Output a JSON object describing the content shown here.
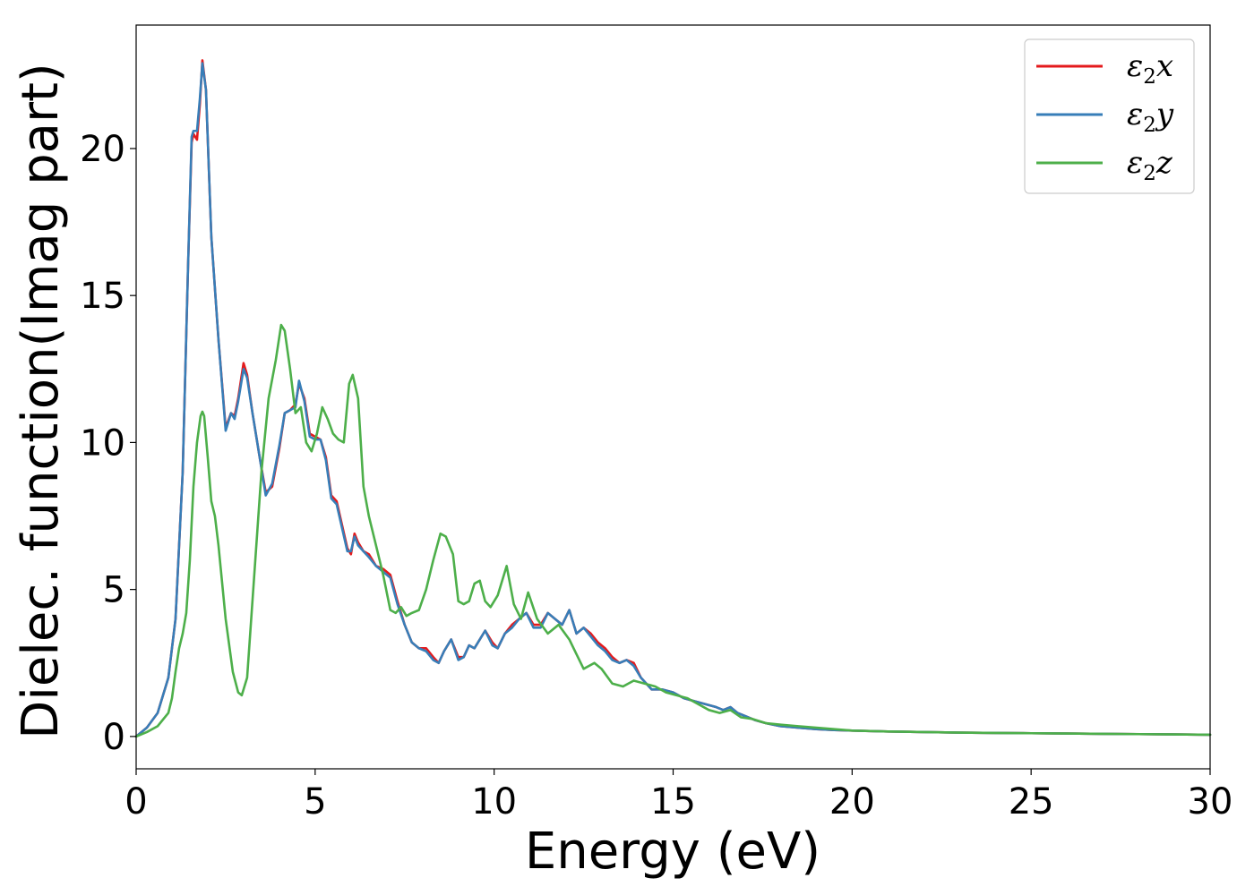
{
  "chart_data": {
    "type": "line",
    "title": "",
    "xlabel": "Energy (eV)",
    "ylabel": "Dielec. function(Imag part)",
    "xlim": [
      0,
      30
    ],
    "ylim": [
      -1.1,
      24.2
    ],
    "xticks": [
      0,
      5,
      10,
      15,
      20,
      25,
      30
    ],
    "yticks": [
      0,
      5,
      10,
      15,
      20
    ],
    "grid": false,
    "legend_position": "top-right",
    "series": [
      {
        "name": "ε₂x",
        "legend_base": "ε",
        "legend_sub": "2",
        "legend_suffix": "x",
        "color": "#e41a1c",
        "x": [
          0,
          0.3,
          0.6,
          0.9,
          1.1,
          1.3,
          1.45,
          1.55,
          1.6,
          1.7,
          1.78,
          1.85,
          1.95,
          2.1,
          2.3,
          2.5,
          2.65,
          2.75,
          2.85,
          3.0,
          3.1,
          3.25,
          3.45,
          3.62,
          3.8,
          4.0,
          4.15,
          4.3,
          4.45,
          4.55,
          4.7,
          4.85,
          5.0,
          5.15,
          5.3,
          5.45,
          5.6,
          5.75,
          5.9,
          6.0,
          6.1,
          6.2,
          6.35,
          6.5,
          6.7,
          6.9,
          7.1,
          7.3,
          7.5,
          7.7,
          7.9,
          8.1,
          8.3,
          8.45,
          8.6,
          8.8,
          9.0,
          9.15,
          9.3,
          9.45,
          9.6,
          9.75,
          9.95,
          10.1,
          10.3,
          10.5,
          10.7,
          10.9,
          11.1,
          11.3,
          11.5,
          11.7,
          11.9,
          12.1,
          12.3,
          12.5,
          12.7,
          12.9,
          13.1,
          13.3,
          13.5,
          13.7,
          13.9,
          14.1,
          14.4,
          14.7,
          15.0,
          15.3,
          15.6,
          15.9,
          16.2,
          16.4,
          16.6,
          16.8,
          17.0,
          17.3,
          17.6,
          18.0,
          18.5,
          19.0,
          19.5,
          20.0,
          21.0,
          22.0,
          23.0,
          24.0,
          25.0,
          26.0,
          27.0,
          28.0,
          29.0,
          30.0
        ],
        "values": [
          0,
          0.3,
          0.8,
          2.0,
          4.0,
          9.0,
          16.0,
          20.2,
          20.5,
          20.3,
          21.5,
          23.0,
          22.0,
          17.0,
          13.5,
          10.5,
          11.0,
          10.9,
          11.5,
          12.7,
          12.3,
          11.0,
          9.5,
          8.3,
          8.5,
          9.8,
          11.0,
          11.1,
          11.3,
          12.0,
          11.5,
          10.3,
          10.2,
          10.1,
          9.5,
          8.2,
          8.0,
          7.2,
          6.4,
          6.2,
          6.9,
          6.6,
          6.3,
          6.2,
          5.8,
          5.7,
          5.5,
          4.6,
          3.8,
          3.2,
          3.0,
          3.0,
          2.7,
          2.5,
          2.9,
          3.3,
          2.7,
          2.7,
          3.1,
          3.0,
          3.3,
          3.6,
          3.2,
          3.0,
          3.5,
          3.8,
          4.0,
          4.2,
          3.8,
          3.8,
          4.2,
          4.0,
          3.8,
          4.3,
          3.5,
          3.7,
          3.5,
          3.2,
          3.0,
          2.7,
          2.5,
          2.6,
          2.5,
          2.0,
          1.6,
          1.6,
          1.5,
          1.3,
          1.2,
          1.1,
          1.0,
          0.9,
          1.0,
          0.8,
          0.7,
          0.55,
          0.45,
          0.35,
          0.3,
          0.25,
          0.22,
          0.2,
          0.17,
          0.15,
          0.13,
          0.12,
          0.11,
          0.1,
          0.09,
          0.08,
          0.07,
          0.06
        ]
      },
      {
        "name": "ε₂y",
        "legend_base": "ε",
        "legend_sub": "2",
        "legend_suffix": "y",
        "color": "#377eb8",
        "x": [
          0,
          0.3,
          0.6,
          0.9,
          1.1,
          1.3,
          1.45,
          1.55,
          1.6,
          1.7,
          1.78,
          1.85,
          1.95,
          2.1,
          2.3,
          2.5,
          2.65,
          2.75,
          2.85,
          3.0,
          3.1,
          3.25,
          3.45,
          3.62,
          3.8,
          4.0,
          4.15,
          4.3,
          4.45,
          4.55,
          4.7,
          4.85,
          5.0,
          5.15,
          5.3,
          5.45,
          5.6,
          5.75,
          5.9,
          6.0,
          6.1,
          6.2,
          6.35,
          6.5,
          6.7,
          6.9,
          7.1,
          7.3,
          7.5,
          7.7,
          7.9,
          8.1,
          8.3,
          8.45,
          8.6,
          8.8,
          9.0,
          9.15,
          9.3,
          9.45,
          9.6,
          9.75,
          9.95,
          10.1,
          10.3,
          10.5,
          10.7,
          10.9,
          11.1,
          11.3,
          11.5,
          11.7,
          11.9,
          12.1,
          12.3,
          12.5,
          12.7,
          12.9,
          13.1,
          13.3,
          13.5,
          13.7,
          13.9,
          14.1,
          14.4,
          14.7,
          15.0,
          15.3,
          15.6,
          15.9,
          16.2,
          16.4,
          16.6,
          16.8,
          17.0,
          17.3,
          17.6,
          18.0,
          18.5,
          19.0,
          19.5,
          20.0,
          21.0,
          22.0,
          23.0,
          24.0,
          25.0,
          26.0,
          27.0,
          28.0,
          29.0,
          30.0
        ],
        "values": [
          0,
          0.3,
          0.8,
          2.0,
          4.0,
          9.0,
          16.0,
          20.4,
          20.6,
          20.6,
          21.7,
          22.9,
          22.0,
          17.0,
          13.5,
          10.4,
          11.0,
          10.8,
          11.4,
          12.5,
          12.2,
          11.0,
          9.5,
          8.2,
          8.6,
          9.9,
          11.0,
          11.1,
          11.2,
          12.1,
          11.4,
          10.2,
          10.1,
          10.1,
          9.4,
          8.1,
          7.9,
          7.1,
          6.3,
          6.3,
          6.8,
          6.5,
          6.3,
          6.1,
          5.8,
          5.6,
          5.4,
          4.5,
          3.8,
          3.2,
          3.0,
          2.9,
          2.6,
          2.5,
          2.9,
          3.3,
          2.6,
          2.7,
          3.1,
          3.0,
          3.3,
          3.6,
          3.1,
          3.0,
          3.5,
          3.7,
          4.0,
          4.2,
          3.7,
          3.7,
          4.2,
          4.0,
          3.8,
          4.3,
          3.5,
          3.7,
          3.4,
          3.1,
          2.9,
          2.6,
          2.5,
          2.6,
          2.4,
          2.0,
          1.6,
          1.6,
          1.5,
          1.3,
          1.2,
          1.1,
          1.0,
          0.9,
          1.0,
          0.8,
          0.7,
          0.55,
          0.45,
          0.35,
          0.3,
          0.25,
          0.22,
          0.2,
          0.17,
          0.15,
          0.13,
          0.12,
          0.11,
          0.1,
          0.09,
          0.08,
          0.07,
          0.06
        ]
      },
      {
        "name": "ε₂z",
        "legend_base": "ε",
        "legend_sub": "2",
        "legend_suffix": "z",
        "color": "#4daf4a",
        "x": [
          0,
          0.3,
          0.6,
          0.9,
          1.0,
          1.1,
          1.2,
          1.3,
          1.4,
          1.5,
          1.6,
          1.7,
          1.8,
          1.85,
          1.9,
          2.0,
          2.1,
          2.2,
          2.3,
          2.5,
          2.7,
          2.85,
          2.95,
          3.1,
          3.3,
          3.5,
          3.7,
          3.9,
          4.05,
          4.15,
          4.3,
          4.45,
          4.6,
          4.75,
          4.9,
          5.05,
          5.2,
          5.35,
          5.5,
          5.65,
          5.8,
          5.95,
          6.05,
          6.2,
          6.35,
          6.5,
          6.7,
          6.9,
          7.1,
          7.25,
          7.4,
          7.55,
          7.7,
          7.9,
          8.1,
          8.3,
          8.5,
          8.65,
          8.85,
          9.0,
          9.15,
          9.3,
          9.45,
          9.6,
          9.75,
          9.9,
          10.1,
          10.35,
          10.55,
          10.75,
          10.95,
          11.2,
          11.5,
          11.8,
          12.1,
          12.3,
          12.5,
          12.8,
          13.0,
          13.3,
          13.6,
          13.9,
          14.2,
          14.5,
          14.8,
          15.1,
          15.4,
          15.7,
          16.0,
          16.3,
          16.6,
          16.9,
          17.2,
          17.6,
          18.0,
          18.5,
          19.0,
          19.5,
          20.0,
          21.0,
          22.0,
          23.0,
          24.0,
          25.0,
          26.0,
          27.0,
          28.0,
          29.0,
          30.0
        ],
        "values": [
          0,
          0.15,
          0.35,
          0.8,
          1.3,
          2.2,
          3.0,
          3.5,
          4.2,
          6.0,
          8.5,
          10.0,
          10.9,
          11.05,
          10.9,
          9.5,
          8.0,
          7.5,
          6.5,
          4.0,
          2.2,
          1.5,
          1.4,
          2.0,
          5.5,
          9.0,
          11.5,
          12.8,
          14.0,
          13.8,
          12.5,
          11.0,
          11.2,
          10.0,
          9.7,
          10.3,
          11.2,
          10.8,
          10.3,
          10.1,
          10.0,
          12.0,
          12.3,
          11.5,
          8.5,
          7.5,
          6.5,
          5.5,
          4.3,
          4.2,
          4.4,
          4.1,
          4.2,
          4.3,
          5.0,
          6.0,
          6.9,
          6.8,
          6.2,
          4.6,
          4.5,
          4.6,
          5.2,
          5.3,
          4.6,
          4.4,
          4.8,
          5.8,
          4.5,
          4.0,
          4.9,
          4.0,
          3.5,
          3.8,
          3.3,
          2.8,
          2.3,
          2.5,
          2.3,
          1.8,
          1.7,
          1.9,
          1.8,
          1.7,
          1.5,
          1.4,
          1.3,
          1.1,
          0.9,
          0.8,
          0.9,
          0.65,
          0.6,
          0.45,
          0.4,
          0.35,
          0.3,
          0.25,
          0.2,
          0.17,
          0.15,
          0.13,
          0.12,
          0.11,
          0.1,
          0.09,
          0.08,
          0.07,
          0.06
        ]
      }
    ]
  }
}
